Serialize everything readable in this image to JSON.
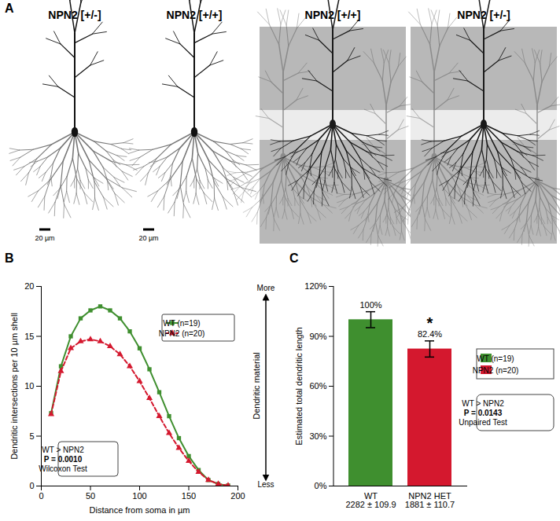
{
  "panel_a": {
    "label": "A",
    "images": [
      {
        "label": "NPN2 [+/-]",
        "kind": "tracing",
        "scale_bar": "20 µm"
      },
      {
        "label": "NPN2 [+/+]",
        "kind": "tracing",
        "scale_bar": "20 µm"
      },
      {
        "label": "NPN2 [+/+]",
        "kind": "micrograph"
      },
      {
        "label": "NPN2 [+/-]",
        "kind": "micrograph"
      }
    ]
  },
  "chart_data": [
    {
      "panel_label": "B",
      "type": "line",
      "x_label": "Distance from soma in µm",
      "y_label": "Dendritic intersections per 10 µm shell",
      "x": [
        10,
        20,
        30,
        40,
        50,
        60,
        70,
        80,
        90,
        100,
        110,
        120,
        130,
        140,
        150,
        160,
        170,
        180,
        190
      ],
      "xlim": [
        0,
        200
      ],
      "xticks": [
        0,
        50,
        100,
        150,
        200
      ],
      "ylim": [
        0,
        20
      ],
      "yticks": [
        0,
        5,
        10,
        15,
        20
      ],
      "series": [
        {
          "name": "WT (n=19)",
          "color": "#3f8f2f",
          "marker": "square",
          "line_style": "solid",
          "values": [
            7.3,
            12,
            15,
            16.8,
            17.6,
            18,
            17.6,
            16.8,
            15.5,
            13.8,
            11.7,
            9.4,
            7,
            4.8,
            3,
            1.6,
            0.6,
            0.2,
            0.05
          ]
        },
        {
          "name": "NPN2 (n=20)",
          "color": "#d4182e",
          "marker": "triangle",
          "line_style": "dashed",
          "values": [
            7.2,
            11.5,
            13.8,
            14.5,
            14.7,
            14.5,
            14,
            13.2,
            12,
            10.5,
            8.8,
            7,
            5.3,
            3.8,
            2.5,
            1.4,
            0.6,
            0.2,
            0.05
          ]
        }
      ],
      "legend": "top-right",
      "annotation": [
        "WT > NPN2",
        "P = 0.0010",
        "Wilcoxon Test"
      ],
      "side_scale": {
        "top": "More",
        "label": "Dendritic material",
        "bottom": "Less"
      }
    },
    {
      "panel_label": "C",
      "type": "bar",
      "y_label": "Estimated total dendritic length",
      "categories": [
        "WT",
        "NPN2 HET"
      ],
      "sublabels": [
        "2282 ± 109.9",
        "1881 ± 110.7"
      ],
      "values": [
        100,
        82.4
      ],
      "value_labels": [
        "100%",
        "82.4%"
      ],
      "data_labels": true,
      "errors": [
        4.8,
        4.85
      ],
      "significance": [
        null,
        "*"
      ],
      "colors": [
        "#3f8f2f",
        "#d4182e"
      ],
      "ylim": [
        0,
        120
      ],
      "yticks": [
        {
          "value": 0,
          "label": "0%"
        },
        {
          "value": 30,
          "label": "30%"
        },
        {
          "value": 60,
          "label": "60%"
        },
        {
          "value": 90,
          "label": "90%"
        },
        {
          "value": 120,
          "label": "120%"
        }
      ],
      "legend": "right",
      "legend_entries": [
        "WT (n=19)",
        "NPN2 (n=20)"
      ],
      "annotation": [
        "WT > NPN2",
        "P = 0.0143",
        "Unpaired Test"
      ]
    }
  ]
}
